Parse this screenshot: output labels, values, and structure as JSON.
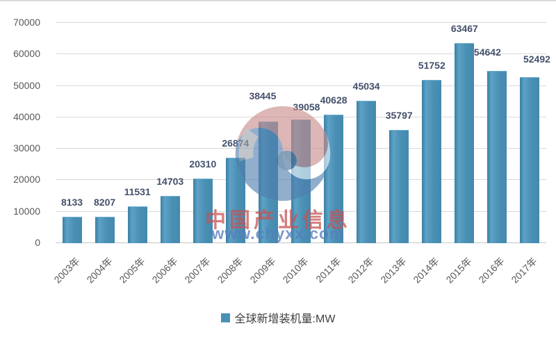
{
  "chart_data": {
    "type": "bar",
    "title": "",
    "categories": [
      "2003年",
      "2004年",
      "2005年",
      "2006年",
      "2007年",
      "2008年",
      "2009年",
      "2010年",
      "2011年",
      "2012年",
      "2013年",
      "2014年",
      "2015年",
      "2016年",
      "2017年"
    ],
    "values": [
      8133,
      8207,
      11531,
      14703,
      20310,
      26874,
      38445,
      39058,
      40628,
      45034,
      35797,
      51752,
      63467,
      54642,
      52492
    ],
    "series_name": "全球新增装机量:MW",
    "xlabel": "",
    "ylabel": "",
    "ylim": [
      0,
      70000
    ],
    "yticks": [
      0,
      10000,
      20000,
      30000,
      40000,
      50000,
      60000,
      70000
    ],
    "grid": true,
    "legend_position": "bottom",
    "bar_color": "#4A90B5",
    "data_label_color": "#44506B",
    "tick_label_color": "#595959",
    "gridline_color": "#D9D9D9",
    "label_offsets": {
      "6": [
        -8,
        -16
      ],
      "7": [
        8,
        3
      ],
      "13": [
        -14,
        -6
      ],
      "14": [
        10,
        -5
      ]
    }
  },
  "legend": {
    "label": "全球新增装机量:MW",
    "swatch_color": "#4A90B5"
  },
  "watermark": {
    "logo": "chyxx-logo",
    "text_primary": "中国产业信息",
    "text_secondary": "www.chyxx.com",
    "text_primary_color": "#C65252",
    "text_secondary_color": "#587CBD"
  }
}
